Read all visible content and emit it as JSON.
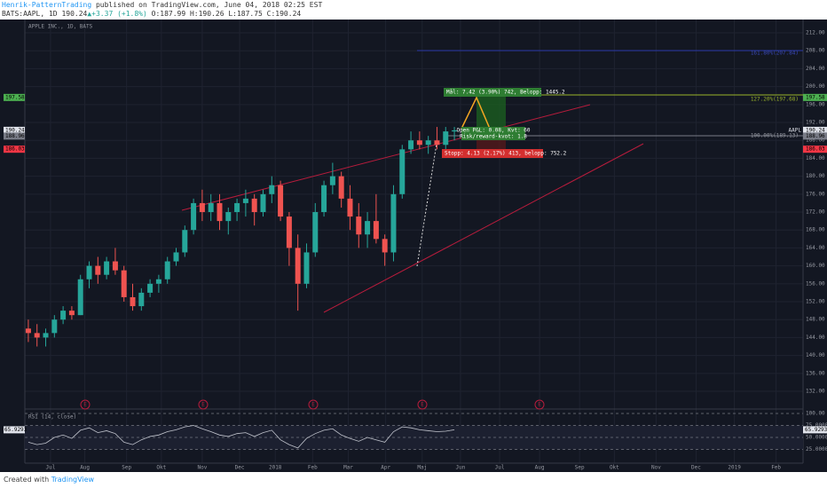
{
  "header": {
    "author": "Henrik-PatternTrading",
    "published": "published on TradingView.com, June 04, 2018 02:25 EST",
    "symbol": "BATS:AAPL, 1D",
    "last": "190.24",
    "change": "▲+3.37 (+1.8%)",
    "ohlc": "O:187.99 H:190.26 L:187.75 C:190.24"
  },
  "chart_data": {
    "type": "candlestick",
    "title": "APPLE INC., 1D, BATS",
    "categories": [
      null,
      null,
      null,
      null,
      null,
      null,
      null,
      null,
      null,
      null,
      null,
      null,
      null,
      null,
      null,
      null,
      null,
      null,
      null,
      null,
      null,
      null,
      null,
      null,
      null,
      null,
      null,
      null,
      null,
      null,
      null,
      null,
      null,
      null,
      null,
      null,
      null,
      null,
      null,
      null,
      null,
      null,
      null,
      null,
      null,
      null,
      null,
      null,
      null,
      null
    ],
    "series": [
      {
        "name": "open",
        "values": [
          146,
          145,
          144,
          145,
          148,
          150,
          149,
          157,
          160,
          158,
          161,
          159,
          153,
          151,
          154,
          156,
          157,
          161,
          163,
          168,
          174,
          172,
          174,
          170,
          172,
          174,
          175,
          172,
          176,
          178,
          171,
          164,
          156,
          163,
          172,
          178,
          180,
          175,
          171,
          167,
          170,
          166,
          163,
          176,
          186,
          188,
          187,
          188,
          187,
          190
        ]
      },
      {
        "name": "high",
        "values": [
          148,
          147,
          146,
          149,
          151,
          151,
          158,
          161,
          162,
          162,
          164,
          160,
          156,
          155,
          157,
          158,
          162,
          164,
          169,
          175,
          177,
          176,
          176,
          173,
          175,
          177,
          176,
          177,
          180,
          179,
          172,
          167,
          165,
          174,
          179,
          183,
          181,
          178,
          174,
          172,
          176,
          167,
          178,
          187,
          190,
          190,
          189,
          191,
          191,
          191
        ]
      },
      {
        "name": "low",
        "values": [
          143,
          142,
          142,
          144,
          147,
          148,
          149,
          155,
          156,
          157,
          158,
          152,
          150,
          150,
          153,
          154,
          156,
          160,
          162,
          167,
          170,
          170,
          168,
          167,
          170,
          171,
          169,
          171,
          174,
          170,
          160,
          150,
          155,
          162,
          171,
          176,
          173,
          168,
          164,
          164,
          165,
          160,
          161,
          175,
          185,
          186,
          185,
          186,
          186,
          188
        ]
      },
      {
        "name": "close",
        "values": [
          145,
          144,
          145,
          148,
          150,
          149,
          157,
          160,
          158,
          161,
          159,
          153,
          151,
          154,
          156,
          157,
          161,
          163,
          168,
          174,
          172,
          174,
          170,
          172,
          174,
          175,
          172,
          176,
          178,
          171,
          164,
          156,
          163,
          172,
          178,
          180,
          175,
          171,
          167,
          170,
          166,
          163,
          176,
          186,
          188,
          187,
          188,
          187,
          190,
          190.24
        ]
      }
    ],
    "up_color": "#26a69a",
    "down_color": "#ef5350",
    "xlim": [
      -0.4,
      89.1
    ],
    "xticks": [
      {
        "value": 2.55,
        "label": "Jul"
      },
      {
        "value": 6.5,
        "label": "Aug"
      },
      {
        "value": 11.3,
        "label": "Sep"
      },
      {
        "value": 15.3,
        "label": "Okt"
      },
      {
        "value": 20,
        "label": "Nov"
      },
      {
        "value": 24.3,
        "label": "Dec"
      },
      {
        "value": 28.4,
        "label": "2018"
      },
      {
        "value": 32.7,
        "label": "Feb"
      },
      {
        "value": 36.8,
        "label": "Mar"
      },
      {
        "value": 41.1,
        "label": "Apr"
      },
      {
        "value": 45.3,
        "label": "Maj"
      },
      {
        "value": 49.7,
        "label": "Jun"
      },
      {
        "value": 54.2,
        "label": "Jul"
      },
      {
        "value": 58.8,
        "label": "Aug"
      },
      {
        "value": 63.4,
        "label": "Sep"
      },
      {
        "value": 67.4,
        "label": "Okt"
      },
      {
        "value": 72.2,
        "label": "Nov"
      },
      {
        "value": 76.8,
        "label": "Dec"
      },
      {
        "value": 81.2,
        "label": "2019"
      },
      {
        "value": 86,
        "label": "Feb"
      }
    ],
    "ylim": [
      128.24,
      213.39
    ],
    "yticks": [
      {
        "value": 132,
        "label": "132.00"
      },
      {
        "value": 136,
        "label": "136.00"
      },
      {
        "value": 140,
        "label": "140.00"
      },
      {
        "value": 144,
        "label": "144.00"
      },
      {
        "value": 148,
        "label": "148.00"
      },
      {
        "value": 152,
        "label": "152.00"
      },
      {
        "value": 156,
        "label": "156.00"
      },
      {
        "value": 160,
        "label": "160.00"
      },
      {
        "value": 164,
        "label": "164.00"
      },
      {
        "value": 168,
        "label": "168.00"
      },
      {
        "value": 172,
        "label": "172.00"
      },
      {
        "value": 176,
        "label": "176.00"
      },
      {
        "value": 180,
        "label": "180.00"
      },
      {
        "value": 184,
        "label": "184.00"
      },
      {
        "value": 188,
        "label": "188.00"
      },
      {
        "value": 192,
        "label": "192.00"
      },
      {
        "value": 196,
        "label": "196.00"
      },
      {
        "value": 200,
        "label": "200.00"
      },
      {
        "value": 204,
        "label": "204.00"
      },
      {
        "value": 208,
        "label": "208.00"
      },
      {
        "value": 212,
        "label": "212.00"
      }
    ],
    "grid": true,
    "symbol_tag": "AAPL",
    "price_labels": [
      {
        "value": 197.58,
        "label": "197.58",
        "color": "#4caf50"
      },
      {
        "value": 190.24,
        "label": "190.24",
        "color": "#e0e3eb"
      },
      {
        "value": 188.96,
        "label": "188.96",
        "color": "#787b86"
      },
      {
        "value": 186.03,
        "label": "186.03",
        "color": "#f23645"
      }
    ],
    "fib_labels": [
      "161.80%(207.84)",
      "127.20%(197.68)",
      "100.00%(189.13)"
    ],
    "target": "Mål: 7.42 (3.90%) 742, Belopp: 1445.2",
    "open_pl": "Open P&L: 0.08, Kvt: 60",
    "risk_reward": "Risk/reward-kvot: 1.8",
    "stop": "Stopp: 4.13 (2.17%) 413, belopp: 752.2",
    "earnings_label": "E",
    "indicator": {
      "title": "RSI (14, close)",
      "color": "#c0c3cc",
      "value_label": "65.9293",
      "values": [
        40,
        35,
        38,
        50,
        55,
        48,
        65,
        70,
        60,
        64,
        58,
        40,
        35,
        45,
        52,
        55,
        62,
        66,
        72,
        75,
        68,
        62,
        55,
        52,
        58,
        60,
        52,
        60,
        65,
        45,
        35,
        28,
        48,
        58,
        65,
        68,
        55,
        48,
        42,
        50,
        45,
        40,
        62,
        72,
        70,
        66,
        64,
        62,
        63,
        65.93
      ],
      "ylim": [
        0,
        100
      ],
      "yticks": [
        {
          "value": 100,
          "label": "100.00"
        },
        {
          "value": 75,
          "label": "75.0000"
        },
        {
          "value": 50,
          "label": "50.0000"
        },
        {
          "value": 25,
          "label": "25.0000"
        }
      ]
    }
  },
  "footer": {
    "created": "Created with",
    "brand": "TradingView"
  }
}
